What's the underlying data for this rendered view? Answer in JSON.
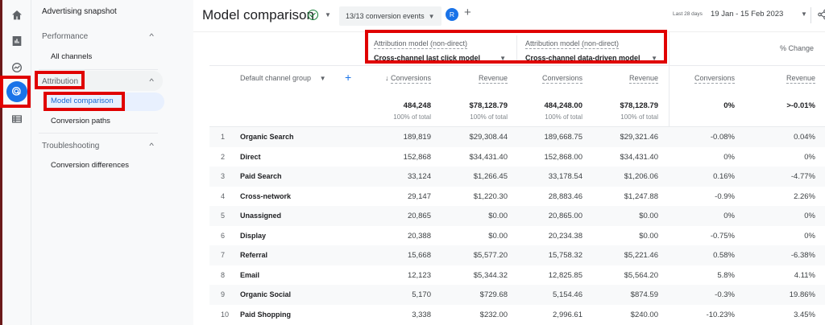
{
  "nav_rail": {
    "icons": [
      "home-icon",
      "reports-icon",
      "explore-icon",
      "advertising-icon",
      "configure-icon"
    ],
    "active": "advertising-icon"
  },
  "sidebar": {
    "top_item": "Advertising snapshot",
    "sections": [
      {
        "label": "Performance",
        "items": [
          {
            "label": "All channels"
          }
        ]
      },
      {
        "label": "Attribution",
        "items": [
          {
            "label": "Model comparison",
            "active": true
          },
          {
            "label": "Conversion paths"
          }
        ]
      },
      {
        "label": "Troubleshooting",
        "items": [
          {
            "label": "Conversion differences"
          }
        ]
      }
    ]
  },
  "header": {
    "title": "Model comparison",
    "conversion_events": "13/13 conversion events",
    "avatar_letter": "R",
    "date_label": "Last 28 days",
    "date_range": "19 Jan - 15 Feb 2023"
  },
  "models": [
    {
      "label": "Attribution model (non-direct)",
      "value": "Cross-channel last click model"
    },
    {
      "label": "Attribution model (non-direct)",
      "value": "Cross-channel data-driven model"
    }
  ],
  "pct_change_label": "% Change",
  "dimension_header": "Default channel group",
  "columns": [
    "Conversions",
    "Revenue",
    "Conversions",
    "Revenue",
    "Conversions",
    "Revenue"
  ],
  "totals": [
    {
      "value": "484,248",
      "sub": "100% of total"
    },
    {
      "value": "$78,128.79",
      "sub": "100% of total"
    },
    {
      "value": "484,248.00",
      "sub": "100% of total"
    },
    {
      "value": "$78,128.79",
      "sub": "100% of total"
    },
    {
      "value": "0%",
      "sub": ""
    },
    {
      "value": ">-0.01%",
      "sub": ""
    }
  ],
  "rows": [
    {
      "idx": "1",
      "name": "Organic Search",
      "c": [
        "189,819",
        "$29,308.44",
        "189,668.75",
        "$29,321.46",
        "-0.08%",
        "0.04%"
      ]
    },
    {
      "idx": "2",
      "name": "Direct",
      "c": [
        "152,868",
        "$34,431.40",
        "152,868.00",
        "$34,431.40",
        "0%",
        "0%"
      ]
    },
    {
      "idx": "3",
      "name": "Paid Search",
      "c": [
        "33,124",
        "$1,266.45",
        "33,178.54",
        "$1,206.06",
        "0.16%",
        "-4.77%"
      ]
    },
    {
      "idx": "4",
      "name": "Cross-network",
      "c": [
        "29,147",
        "$1,220.30",
        "28,883.46",
        "$1,247.88",
        "-0.9%",
        "2.26%"
      ]
    },
    {
      "idx": "5",
      "name": "Unassigned",
      "c": [
        "20,865",
        "$0.00",
        "20,865.00",
        "$0.00",
        "0%",
        "0%"
      ]
    },
    {
      "idx": "6",
      "name": "Display",
      "c": [
        "20,388",
        "$0.00",
        "20,234.38",
        "$0.00",
        "-0.75%",
        "0%"
      ]
    },
    {
      "idx": "7",
      "name": "Referral",
      "c": [
        "15,668",
        "$5,577.20",
        "15,758.32",
        "$5,221.46",
        "0.58%",
        "-6.38%"
      ]
    },
    {
      "idx": "8",
      "name": "Email",
      "c": [
        "12,123",
        "$5,344.32",
        "12,825.85",
        "$5,564.20",
        "5.8%",
        "4.11%"
      ]
    },
    {
      "idx": "9",
      "name": "Organic Social",
      "c": [
        "5,170",
        "$729.68",
        "5,154.46",
        "$874.59",
        "-0.3%",
        "19.86%"
      ]
    },
    {
      "idx": "10",
      "name": "Paid Shopping",
      "c": [
        "3,338",
        "$232.00",
        "2,996.61",
        "$240.00",
        "-10.23%",
        "3.45%"
      ]
    }
  ],
  "highlight_color": "#e00000",
  "accent_color": "#1a73e8"
}
